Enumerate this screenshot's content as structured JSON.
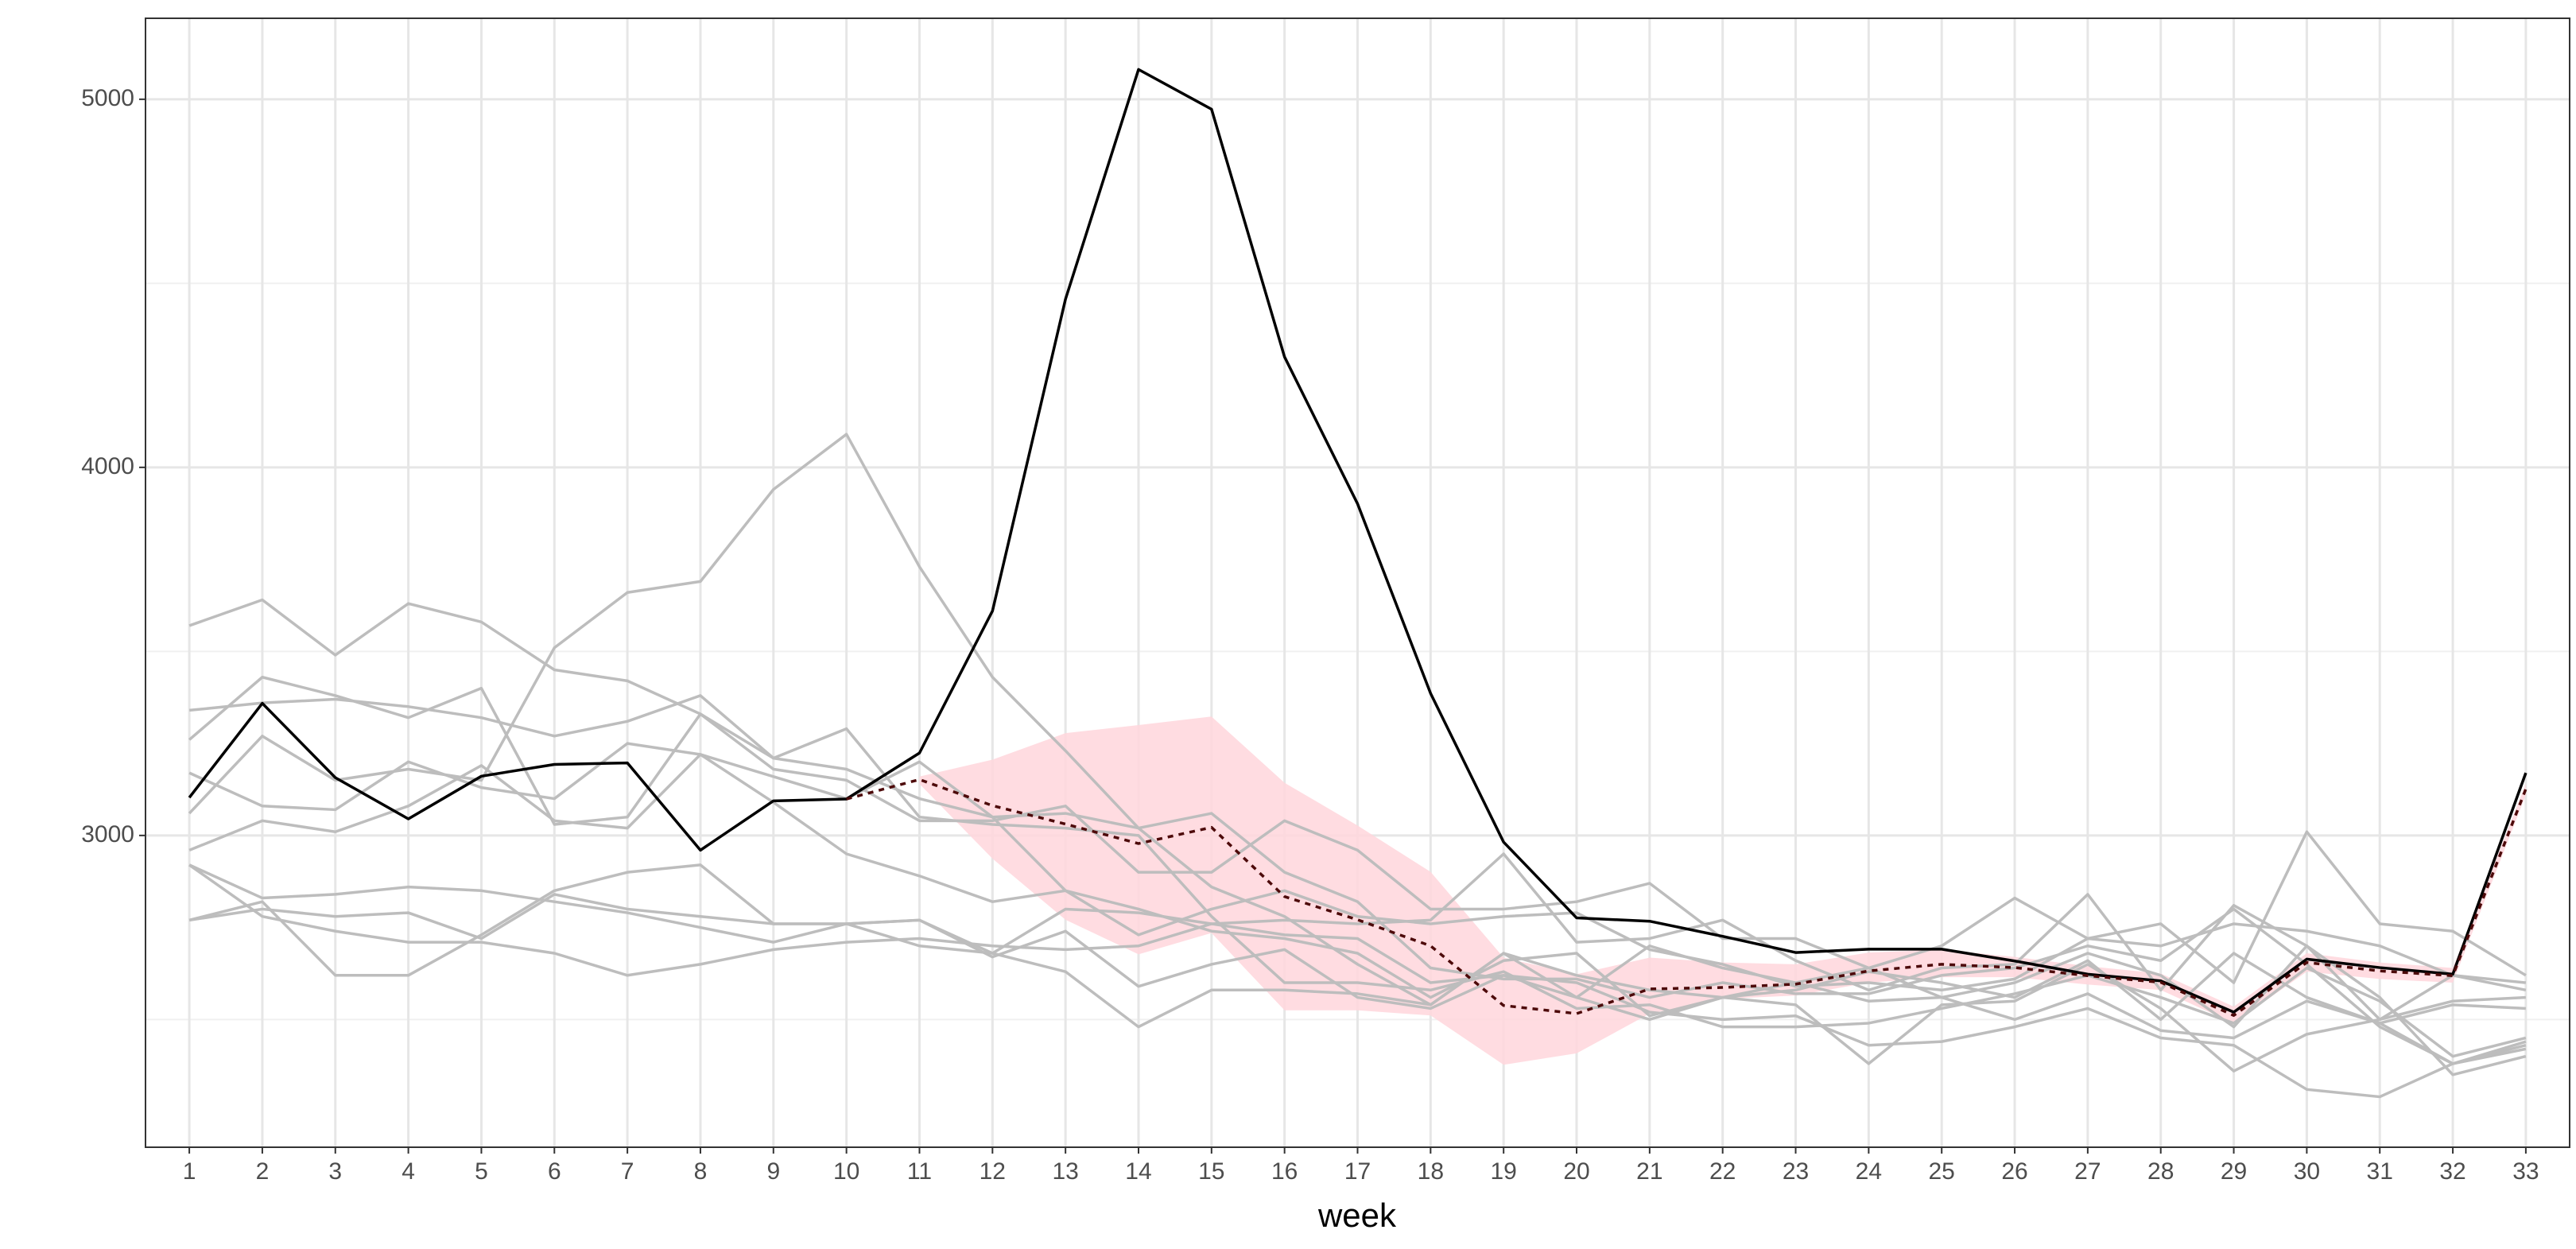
{
  "chart_data": {
    "type": "line",
    "x_label": "week",
    "x": [
      1,
      2,
      3,
      4,
      5,
      6,
      7,
      8,
      9,
      10,
      11,
      12,
      13,
      14,
      15,
      16,
      17,
      18,
      19,
      20,
      21,
      22,
      23,
      24,
      25,
      26,
      27,
      28,
      29,
      30,
      31,
      32,
      33
    ],
    "xlim": [
      0.4,
      33.6
    ],
    "xticks": [
      1,
      2,
      3,
      4,
      5,
      6,
      7,
      8,
      9,
      10,
      11,
      12,
      13,
      14,
      15,
      16,
      17,
      18,
      19,
      20,
      21,
      22,
      23,
      24,
      25,
      26,
      27,
      28,
      29,
      30,
      31,
      32,
      33
    ],
    "ylim": [
      2153,
      5220
    ],
    "yticks": [
      3000,
      4000,
      5000
    ],
    "yminor_ticks": [
      2500,
      3500,
      4500
    ],
    "grid": true,
    "band": {
      "color": "#ffd6dc",
      "x": [
        11,
        12,
        13,
        14,
        15,
        16,
        17,
        18,
        19,
        20,
        21,
        22,
        23,
        24,
        25,
        26,
        27,
        28,
        29,
        30,
        31,
        32,
        33
      ],
      "upper": [
        3160,
        3206,
        3278,
        3300,
        3323,
        3143,
        3027,
        2901,
        2668,
        2623,
        2668,
        2655,
        2650,
        2682,
        2690,
        2670,
        2645,
        2625,
        2535,
        2680,
        2655,
        2640,
        3140
      ],
      "lower": [
        3140,
        2937,
        2771,
        2677,
        2735,
        2525,
        2525,
        2511,
        2377,
        2408,
        2516,
        2556,
        2565,
        2600,
        2615,
        2615,
        2595,
        2580,
        2490,
        2630,
        2610,
        2600,
        3110
      ]
    },
    "series": [
      {
        "color": "#bdbdbd",
        "values": [
          3570,
          3640,
          3490,
          3630,
          3580,
          3450,
          3420,
          3330,
          3180,
          3150,
          3040,
          3040,
          3080,
          2900,
          2900,
          3040,
          2960,
          2800,
          2800,
          2820,
          2870,
          2720,
          2720,
          2640,
          2700,
          2830,
          2720,
          2760,
          2600,
          3010,
          2760,
          2740,
          2620
        ]
      },
      {
        "color": "#bdbdbd",
        "values": [
          3060,
          3270,
          3150,
          3180,
          3150,
          3510,
          3660,
          3690,
          3940,
          4090,
          3730,
          3430,
          3230,
          3020,
          2860,
          2780,
          2650,
          2540,
          2680,
          2560,
          2500,
          2560,
          2580,
          2630,
          2600,
          2560,
          2660,
          2500,
          2680,
          2560,
          2490,
          2540,
          2530
        ]
      },
      {
        "color": "#bdbdbd",
        "values": [
          3340,
          3360,
          3370,
          3350,
          3320,
          3270,
          3310,
          3380,
          3210,
          3180,
          3100,
          3050,
          3060,
          3020,
          3060,
          2900,
          2820,
          2640,
          2610,
          2610,
          2560,
          2600,
          2570,
          2570,
          2620,
          2640,
          2700,
          2660,
          2800,
          2650,
          2480,
          2380,
          2430
        ]
      },
      {
        "color": "#bdbdbd",
        "values": [
          3260,
          3430,
          3380,
          3320,
          3400,
          3030,
          3050,
          3330,
          3210,
          3290,
          3050,
          3030,
          3020,
          3000,
          2780,
          2600,
          2600,
          2580,
          2630,
          2530,
          2540,
          2480,
          2480,
          2490,
          2530,
          2570,
          2620,
          2560,
          2490,
          2640,
          2550,
          2400,
          2450
        ]
      },
      {
        "color": "#bdbdbd",
        "values": [
          3170,
          3080,
          3070,
          3200,
          3130,
          3100,
          3250,
          3220,
          3160,
          3100,
          3200,
          3050,
          2850,
          2800,
          2740,
          2720,
          2680,
          2560,
          2660,
          2680,
          2510,
          2560,
          2600,
          2640,
          2560,
          2600,
          2680,
          2620,
          2480,
          2700,
          2500,
          2620,
          2580
        ]
      },
      {
        "color": "#bdbdbd",
        "values": [
          2960,
          3040,
          3010,
          3080,
          3190,
          3040,
          3020,
          3220,
          3090,
          2950,
          2890,
          2820,
          2850,
          2730,
          2800,
          2850,
          2780,
          2760,
          2780,
          2790,
          2690,
          2650,
          2590,
          2600,
          2580,
          2610,
          2720,
          2700,
          2760,
          2740,
          2700,
          2620,
          2600
        ]
      },
      {
        "color": "#bdbdbd",
        "values": [
          2920,
          2830,
          2840,
          2860,
          2850,
          2820,
          2790,
          2750,
          2710,
          2760,
          2770,
          2670,
          2740,
          2590,
          2650,
          2690,
          2560,
          2530,
          2620,
          2560,
          2700,
          2640,
          2600,
          2550,
          2560,
          2500,
          2570,
          2470,
          2450,
          2550,
          2490,
          2380,
          2420
        ]
      },
      {
        "color": "#bdbdbd",
        "values": [
          2770,
          2820,
          2620,
          2620,
          2730,
          2850,
          2900,
          2920,
          2760,
          2760,
          2700,
          2680,
          2630,
          2480,
          2580,
          2580,
          2570,
          2540,
          2680,
          2620,
          2580,
          2560,
          2540,
          2380,
          2540,
          2550,
          2650,
          2530,
          2360,
          2460,
          2500,
          2550,
          2560
        ]
      },
      {
        "color": "#bdbdbd",
        "values": [
          2920,
          2780,
          2740,
          2710,
          2710,
          2680,
          2620,
          2650,
          2690,
          2710,
          2720,
          2700,
          2690,
          2700,
          2760,
          2730,
          2720,
          2600,
          2620,
          2600,
          2520,
          2500,
          2510,
          2430,
          2440,
          2480,
          2530,
          2450,
          2430,
          2310,
          2290,
          2380,
          2440
        ]
      },
      {
        "color": "#bdbdbd",
        "values": [
          2770,
          2800,
          2780,
          2790,
          2720,
          2840,
          2800,
          2780,
          2760,
          2760,
          2770,
          2680,
          2800,
          2790,
          2760,
          2770,
          2760,
          2770,
          2950,
          2710,
          2720,
          2770,
          2660,
          2580,
          2640,
          2650,
          2840,
          2580,
          2810,
          2700,
          2560,
          2350,
          2400
        ]
      },
      {
        "color": "#000000",
        "values": [
          3103,
          3359,
          3157,
          3045,
          3161,
          3193,
          3197,
          2960,
          3094,
          3099,
          3224,
          3610,
          4457,
          5081,
          4973,
          4300,
          3901,
          3386,
          2982,
          2776,
          2767,
          2726,
          2682,
          2691,
          2691,
          2659,
          2623,
          2605,
          2520,
          2664,
          2641,
          2623,
          3170
        ]
      },
      {
        "color": "#4d0a0a",
        "dash": true,
        "values": [
          null,
          null,
          null,
          null,
          null,
          null,
          null,
          null,
          null,
          3099,
          3152,
          3081,
          3031,
          2978,
          3022,
          2834,
          2771,
          2700,
          2538,
          2516,
          2583,
          2587,
          2596,
          2632,
          2650,
          2641,
          2619,
          2601,
          2511,
          2655,
          2632,
          2619,
          3126
        ]
      }
    ]
  }
}
